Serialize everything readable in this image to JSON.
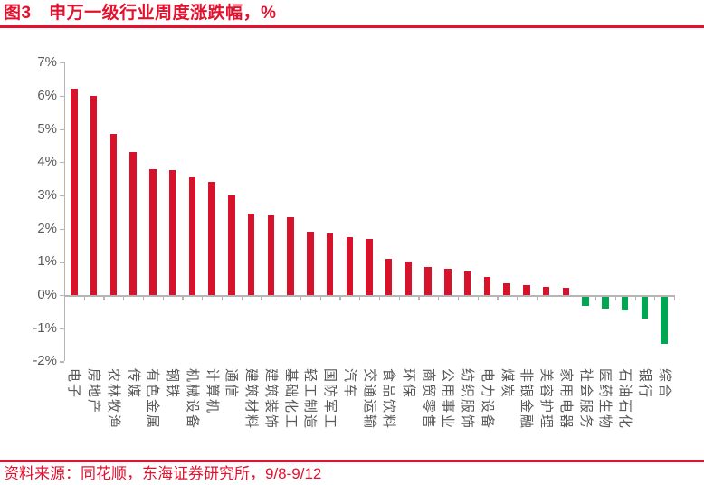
{
  "header": {
    "title": "图3　申万一级行业周度涨跌幅，%"
  },
  "footer": {
    "source": "资料来源：同花顺，东海证券研究所，9/8-9/12"
  },
  "colors": {
    "accent_red": "#E4112E",
    "axis_line": "#B5B5B5",
    "axis_label": "#595959"
  },
  "chart_data": {
    "type": "bar",
    "title": "申万一级行业周度涨跌幅，%",
    "xlabel": "",
    "ylabel": "",
    "unit": "%",
    "ylim": [
      -2,
      7
    ],
    "ytick_step": 1,
    "ytick_labels": [
      "7%",
      "6%",
      "5%",
      "4%",
      "3%",
      "2%",
      "1%",
      "0%",
      "-1%",
      "-2%"
    ],
    "grid": false,
    "legend": "none",
    "positive_color": "#D7122B",
    "negative_color": "#00A651",
    "categories": [
      "电子",
      "房地产",
      "农林牧渔",
      "传媒",
      "有色金属",
      "钢铁",
      "机械设备",
      "计算机",
      "通信",
      "建筑材料",
      "建筑装饰",
      "基础化工",
      "轻工制造",
      "国防军工",
      "汽车",
      "交通运输",
      "食品饮料",
      "环保",
      "商贸零售",
      "公用事业",
      "纺织服饰",
      "电力设备",
      "煤炭",
      "非银金融",
      "美容护理",
      "家用电器",
      "社会服务",
      "医药生物",
      "石油石化",
      "银行",
      "综合"
    ],
    "values": [
      6.2,
      6.0,
      4.85,
      4.3,
      3.8,
      3.75,
      3.55,
      3.4,
      3.0,
      2.45,
      2.4,
      2.35,
      1.9,
      1.85,
      1.75,
      1.7,
      1.1,
      1.0,
      0.85,
      0.8,
      0.7,
      0.55,
      0.35,
      0.3,
      0.25,
      0.22,
      -0.34,
      -0.4,
      -0.45,
      -0.72,
      -1.48
    ]
  }
}
